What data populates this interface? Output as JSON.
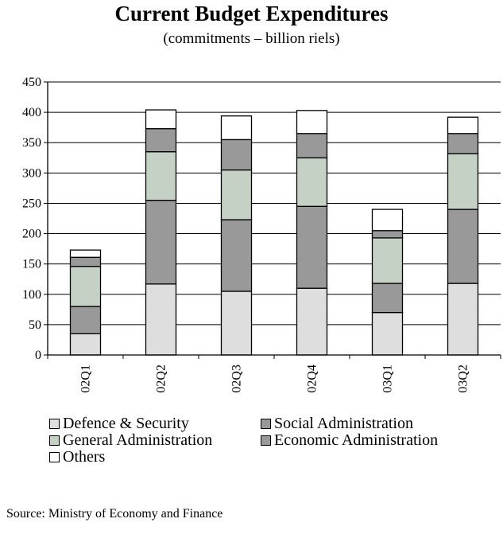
{
  "chart_data": {
    "type": "bar",
    "stacked": true,
    "title": "Current Budget Expenditures",
    "subtitle": "(commitments – billion riels)",
    "xlabel": "",
    "ylabel": "",
    "ylim": [
      0,
      450
    ],
    "yticks": [
      0,
      50,
      100,
      150,
      200,
      250,
      300,
      350,
      400,
      450
    ],
    "grid": true,
    "legend_position": "bottom",
    "categories": [
      "02Q1",
      "02Q2",
      "02Q3",
      "02Q4",
      "03Q1",
      "03Q2"
    ],
    "series": [
      {
        "name": "Defence & Security",
        "color": "#dedede",
        "values": [
          35,
          117,
          105,
          110,
          70,
          118
        ]
      },
      {
        "name": "Social Administration",
        "color": "#999999",
        "values": [
          45,
          138,
          118,
          135,
          48,
          122
        ]
      },
      {
        "name": "General Administration",
        "color": "#c5d1c5",
        "values": [
          66,
          80,
          82,
          80,
          75,
          92
        ]
      },
      {
        "name": "Economic Administration",
        "color": "#999999",
        "values": [
          15,
          38,
          50,
          40,
          12,
          33
        ]
      },
      {
        "name": "Others",
        "color": "#ffffff",
        "values": [
          12,
          31,
          39,
          38,
          35,
          27
        ]
      }
    ]
  },
  "source": "Source: Ministry of Economy and Finance"
}
